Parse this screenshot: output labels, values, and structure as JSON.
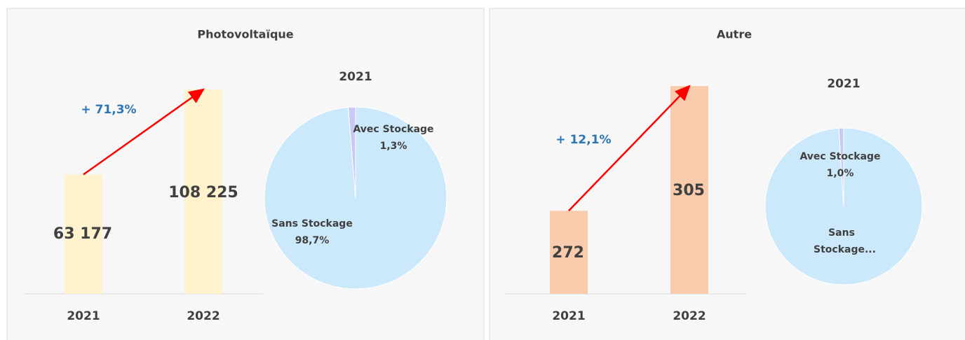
{
  "chart_data": [
    {
      "type": "bar",
      "title": "Photovoltaïque",
      "categories": [
        "2021",
        "2022"
      ],
      "values": [
        63177,
        108225
      ],
      "value_labels": [
        "63 177",
        "108 225"
      ],
      "color": "#fff2cc",
      "ylim": [
        0,
        120000
      ],
      "annotation": "+ 71,3%"
    },
    {
      "type": "pie",
      "title": "2021",
      "categories": [
        "Avec Stockage",
        "Sans Stockage"
      ],
      "values": [
        1.3,
        98.7
      ],
      "value_labels": [
        "1,3%",
        "98,7%"
      ],
      "colors": [
        "#c9c9f5",
        "#cce9fb"
      ]
    },
    {
      "type": "bar",
      "title": "Autre",
      "categories": [
        "2021",
        "2022"
      ],
      "values": [
        272,
        305
      ],
      "value_labels": [
        "272",
        "305"
      ],
      "color": "#f8cbad",
      "ylim": [
        250,
        310
      ],
      "annotation": "+ 12,1%"
    },
    {
      "type": "pie",
      "title": "2021",
      "categories": [
        "Avec Stockage",
        "Sans Stockage..."
      ],
      "values": [
        1.0,
        99.0
      ],
      "value_labels": [
        "1,0%",
        null
      ],
      "colors": [
        "#c9c9f5",
        "#cce9fb"
      ]
    }
  ]
}
